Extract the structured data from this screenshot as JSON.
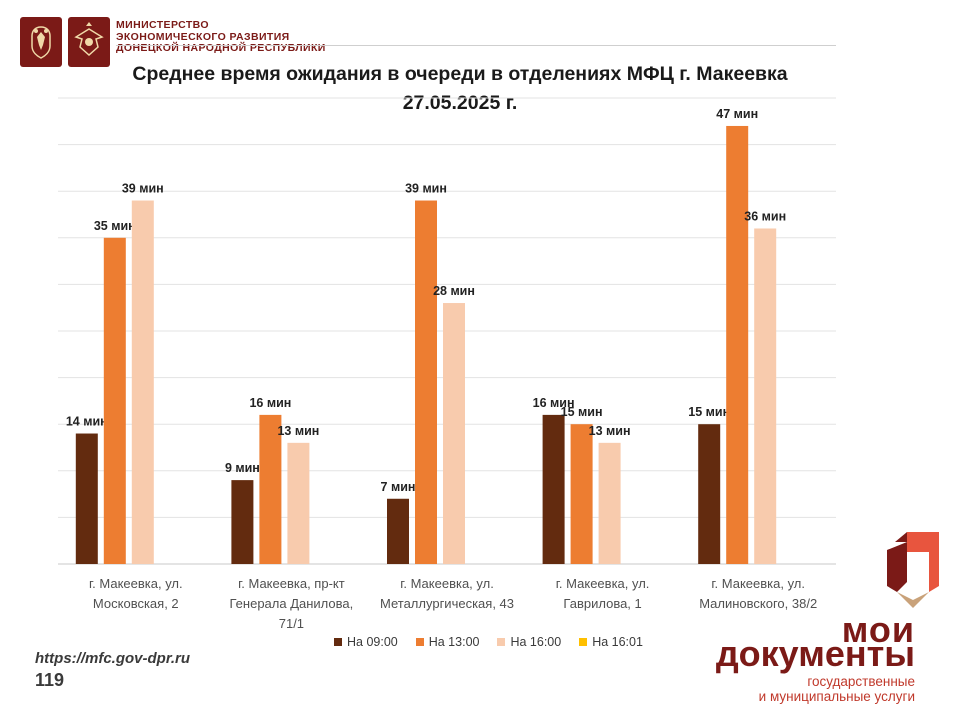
{
  "header": {
    "ministry_lines": [
      "МИНИСТЕРСТВО",
      "ЭКОНОМИЧЕСКОГО РАЗВИТИЯ",
      "ДОНЕЦКОЙ НАРОДНОЙ РЕСПУБЛИКИ"
    ],
    "emblems": [
      "russia-coat-of-arms-icon",
      "dpr-coat-of-arms-icon"
    ]
  },
  "footer": {
    "url": "https://mfc.gov-dpr.ru",
    "page_number": "119"
  },
  "brand": {
    "name_line1": "мои",
    "name_line2": "документы",
    "sub_line1": "государственные",
    "sub_line2": "и муниципальные услуги",
    "logo_icon": "moi-dokumenty-logo-icon"
  },
  "chart_data": {
    "type": "bar",
    "title_lines": [
      "Среднее время ожидания в очереди в отделениях МФЦ г. Макеевка",
      "27.05.2025 г."
    ],
    "categories": [
      [
        "г. Макеевка, ул.",
        "Московская, 2"
      ],
      [
        "г. Макеевка, пр-кт",
        "Генерала Данилова,",
        "71/1"
      ],
      [
        "г. Макеевка, ул.",
        "Металлургическая, 43"
      ],
      [
        "г. Макеевка, ул.",
        "Гаврилова, 1"
      ],
      [
        "г. Макеевка, ул.",
        "Малиновского, 38/2"
      ]
    ],
    "series": [
      {
        "name": "На 09:00",
        "color": "#632b0f",
        "values": [
          14,
          9,
          7,
          16,
          15
        ],
        "labels": [
          "14 мин",
          "9 мин",
          "7 мин",
          "16 мин",
          "15 мин"
        ]
      },
      {
        "name": "На 13:00",
        "color": "#ed7d31",
        "values": [
          35,
          16,
          39,
          15,
          47
        ],
        "labels": [
          "35 мин",
          "16 мин",
          "39 мин",
          "15 мин",
          "47 мин"
        ]
      },
      {
        "name": "На 16:00",
        "color": "#f8cbad",
        "values": [
          39,
          13,
          28,
          13,
          36
        ],
        "labels": [
          "39 мин",
          "13 мин",
          "28 мин",
          "13 мин",
          "36 мин"
        ]
      },
      {
        "name": "На 16:01",
        "color": "#ffc000",
        "values": [
          0,
          0,
          0,
          0,
          0
        ],
        "labels": [
          "",
          "",
          "",
          "",
          ""
        ]
      }
    ],
    "ylim": [
      0,
      45
    ],
    "grid": true,
    "legend_position": "bottom"
  }
}
